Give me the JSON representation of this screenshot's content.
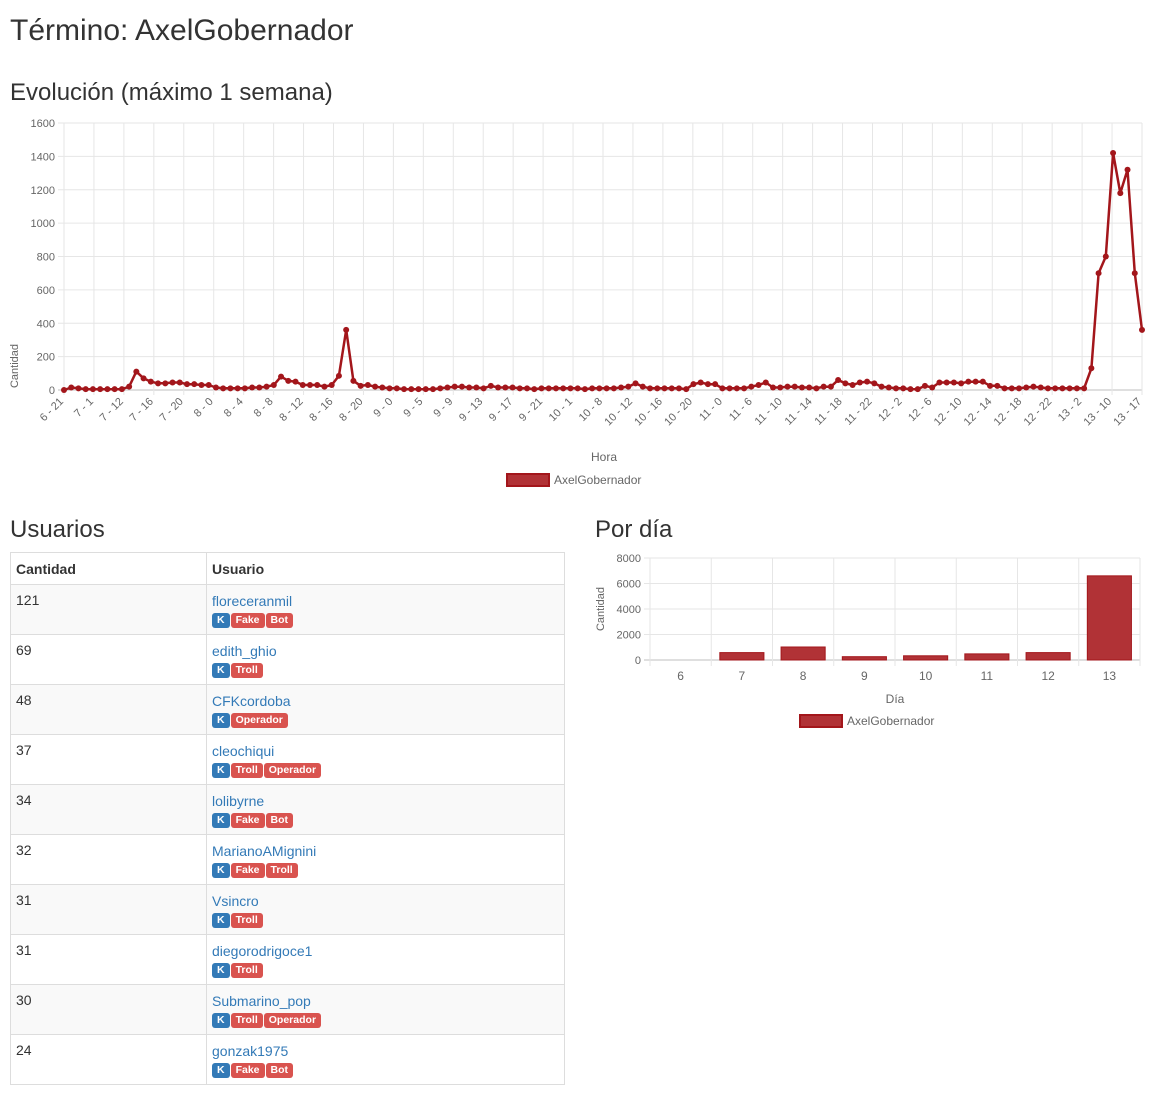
{
  "page": {
    "term_title": "Término: AxelGobernador",
    "evolution_title": "Evolución (máximo 1 semana)",
    "users_title": "Usuarios",
    "per_day_title": "Por día"
  },
  "colors": {
    "series": "#a3161b",
    "series_fill": "#b13236",
    "link": "#337ab7",
    "badge_k": "#337ab7",
    "badge_red": "#d9534f"
  },
  "chart_data": [
    {
      "type": "line",
      "xlabel": "Hora",
      "ylabel": "Cantidad",
      "ylim": [
        0,
        1600
      ],
      "yticks": [
        0,
        200,
        400,
        600,
        800,
        1000,
        1200,
        1400,
        1600
      ],
      "grid": true,
      "legend": "bottom",
      "tick_labels": [
        "6 - 21",
        "7 - 1",
        "7 - 12",
        "7 - 16",
        "7 - 20",
        "8 - 0",
        "8 - 4",
        "8 - 8",
        "8 - 12",
        "8 - 16",
        "8 - 20",
        "9 - 0",
        "9 - 5",
        "9 - 9",
        "9 - 13",
        "9 - 17",
        "9 - 21",
        "10 - 1",
        "10 - 8",
        "10 - 12",
        "10 - 16",
        "10 - 20",
        "11 - 0",
        "11 - 6",
        "11 - 10",
        "11 - 14",
        "11 - 18",
        "11 - 22",
        "12 - 2",
        "12 - 6",
        "12 - 10",
        "12 - 14",
        "12 - 18",
        "12 - 22",
        "13 - 2",
        "13 - 10",
        "13 - 17"
      ],
      "series": [
        {
          "name": "AxelGobernador",
          "values": [
            0,
            15,
            10,
            5,
            5,
            5,
            5,
            5,
            5,
            20,
            110,
            70,
            50,
            40,
            40,
            45,
            45,
            35,
            35,
            30,
            30,
            15,
            10,
            10,
            10,
            10,
            15,
            15,
            20,
            30,
            80,
            55,
            50,
            30,
            30,
            30,
            20,
            30,
            85,
            360,
            55,
            25,
            30,
            20,
            15,
            10,
            10,
            5,
            5,
            5,
            5,
            5,
            10,
            15,
            20,
            20,
            15,
            15,
            10,
            25,
            15,
            15,
            15,
            10,
            10,
            5,
            10,
            10,
            10,
            10,
            10,
            10,
            5,
            10,
            10,
            10,
            10,
            15,
            20,
            40,
            20,
            10,
            10,
            10,
            10,
            10,
            5,
            35,
            45,
            35,
            35,
            10,
            10,
            10,
            10,
            20,
            30,
            45,
            15,
            15,
            20,
            20,
            15,
            15,
            10,
            20,
            20,
            60,
            40,
            30,
            45,
            50,
            40,
            20,
            15,
            10,
            10,
            5,
            5,
            25,
            15,
            45,
            45,
            45,
            40,
            50,
            50,
            50,
            25,
            25,
            10,
            10,
            10,
            15,
            20,
            15,
            10,
            10,
            10,
            10,
            10,
            10,
            130,
            700,
            800,
            1420,
            1180,
            1320,
            700,
            360
          ]
        }
      ]
    },
    {
      "type": "bar",
      "xlabel": "Día",
      "ylabel": "Cantidad",
      "ylim": [
        0,
        8000
      ],
      "yticks": [
        0,
        2000,
        4000,
        6000,
        8000
      ],
      "grid": true,
      "legend": "bottom",
      "categories": [
        "6",
        "7",
        "8",
        "9",
        "10",
        "11",
        "12",
        "13"
      ],
      "series": [
        {
          "name": "AxelGobernador",
          "values": [
            0,
            580,
            1020,
            260,
            330,
            480,
            580,
            6600
          ]
        }
      ]
    }
  ],
  "users_table": {
    "headers": [
      "Cantidad",
      "Usuario"
    ],
    "rows": [
      {
        "count": "121",
        "user": "floreceranmil",
        "tags": [
          "K",
          "Fake",
          "Bot"
        ]
      },
      {
        "count": "69",
        "user": "edith_ghio",
        "tags": [
          "K",
          "Troll"
        ]
      },
      {
        "count": "48",
        "user": "CFKcordoba",
        "tags": [
          "K",
          "Operador"
        ]
      },
      {
        "count": "37",
        "user": "cleochiqui",
        "tags": [
          "K",
          "Troll",
          "Operador"
        ]
      },
      {
        "count": "34",
        "user": "lolibyrne",
        "tags": [
          "K",
          "Fake",
          "Bot"
        ]
      },
      {
        "count": "32",
        "user": "MarianoAMignini",
        "tags": [
          "K",
          "Fake",
          "Troll"
        ]
      },
      {
        "count": "31",
        "user": "Vsincro",
        "tags": [
          "K",
          "Troll"
        ]
      },
      {
        "count": "31",
        "user": "diegorodrigoce1",
        "tags": [
          "K",
          "Troll"
        ]
      },
      {
        "count": "30",
        "user": "Submarino_pop",
        "tags": [
          "K",
          "Troll",
          "Operador"
        ]
      },
      {
        "count": "24",
        "user": "gonzak1975",
        "tags": [
          "K",
          "Fake",
          "Bot"
        ]
      }
    ]
  }
}
